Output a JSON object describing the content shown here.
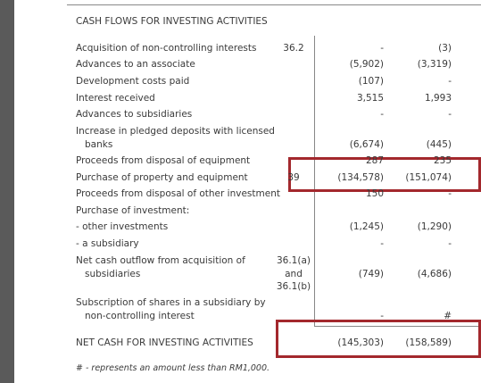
{
  "section": {
    "title": "CASH FLOWS FOR INVESTING ACTIVITIES",
    "rows": [
      {
        "label": [
          "Acquisition of non-controlling interests"
        ],
        "note": [
          "36.2"
        ],
        "current": "-",
        "prior": "(3)"
      },
      {
        "label": [
          "Advances to an associate"
        ],
        "current": "(5,902)",
        "prior": "(3,319)"
      },
      {
        "label": [
          "Development costs paid"
        ],
        "current": "(107)",
        "prior": "-"
      },
      {
        "label": [
          "Interest received"
        ],
        "current": "3,515",
        "prior": "1,993"
      },
      {
        "label": [
          "Advances to subsidiaries"
        ],
        "current": "-",
        "prior": "-"
      },
      {
        "label": [
          "Increase in pledged deposits with licensed",
          "banks"
        ],
        "current": "(6,674)",
        "prior": "(445)"
      },
      {
        "label": [
          "Proceeds from disposal of equipment"
        ],
        "current": "287",
        "prior": "235"
      },
      {
        "label": [
          "Purchase of property and equipment"
        ],
        "note": [
          "39"
        ],
        "current": "(134,578)",
        "prior": "(151,074)"
      },
      {
        "label": [
          "Proceeds from disposal of other investment"
        ],
        "current": "150",
        "prior": "-"
      },
      {
        "label": [
          "Purchase of investment:"
        ]
      },
      {
        "label": [
          "- other investments"
        ],
        "current": "(1,245)",
        "prior": "(1,290)"
      },
      {
        "label": [
          "- a subsidiary"
        ],
        "current": "-",
        "prior": "-"
      },
      {
        "label": [
          "Net cash outflow from acquisition of",
          "subsidiaries"
        ],
        "note": [
          "36.1(a)",
          "and",
          "36.1(b)"
        ],
        "current": "(749)",
        "prior": "(4,686)"
      },
      {
        "label": [
          "Subscription of shares in a subsidiary by",
          "non-controlling interest"
        ],
        "current": "-",
        "prior": "#"
      },
      {
        "label": [
          "NET CASH FOR INVESTING ACTIVITIES"
        ],
        "current": "(145,303)",
        "prior": "(158,589)"
      }
    ]
  },
  "footnote": "# - represents an amount less than RM1,000."
}
